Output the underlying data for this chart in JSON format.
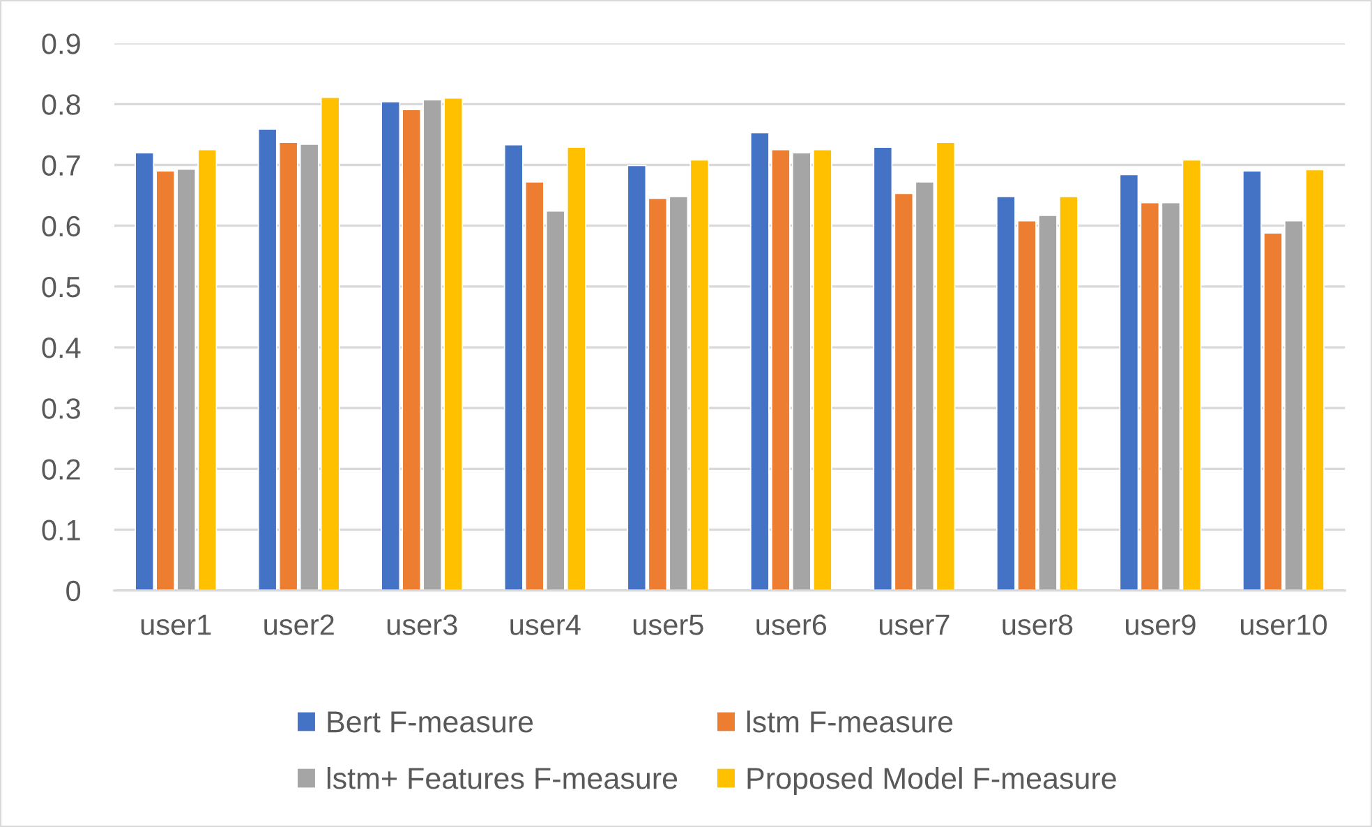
{
  "chart_data": {
    "type": "bar",
    "categories": [
      "user1",
      "user2",
      "user3",
      "user4",
      "user5",
      "user6",
      "user7",
      "user8",
      "user9",
      "user10"
    ],
    "series": [
      {
        "name": "Bert F-measure",
        "color": "#4472c4",
        "values": [
          0.72,
          0.759,
          0.804,
          0.733,
          0.699,
          0.753,
          0.729,
          0.648,
          0.684,
          0.69
        ]
      },
      {
        "name": "lstm F-measure",
        "color": "#ed7d31",
        "values": [
          0.69,
          0.737,
          0.791,
          0.672,
          0.645,
          0.725,
          0.653,
          0.608,
          0.638,
          0.588
        ]
      },
      {
        "name": "lstm+ Features F-measure",
        "color": "#a5a5a5",
        "values": [
          0.693,
          0.734,
          0.807,
          0.624,
          0.648,
          0.72,
          0.672,
          0.617,
          0.638,
          0.608
        ]
      },
      {
        "name": "Proposed Model F-measure",
        "color": "#ffc000",
        "values": [
          0.725,
          0.811,
          0.81,
          0.729,
          0.708,
          0.725,
          0.737,
          0.648,
          0.708,
          0.692
        ]
      }
    ],
    "ylim": [
      0,
      0.9
    ],
    "yticks": [
      0,
      0.1,
      0.2,
      0.3,
      0.4,
      0.5,
      0.6,
      0.7,
      0.8,
      0.9
    ],
    "grid": "y",
    "legend": "bottom"
  }
}
